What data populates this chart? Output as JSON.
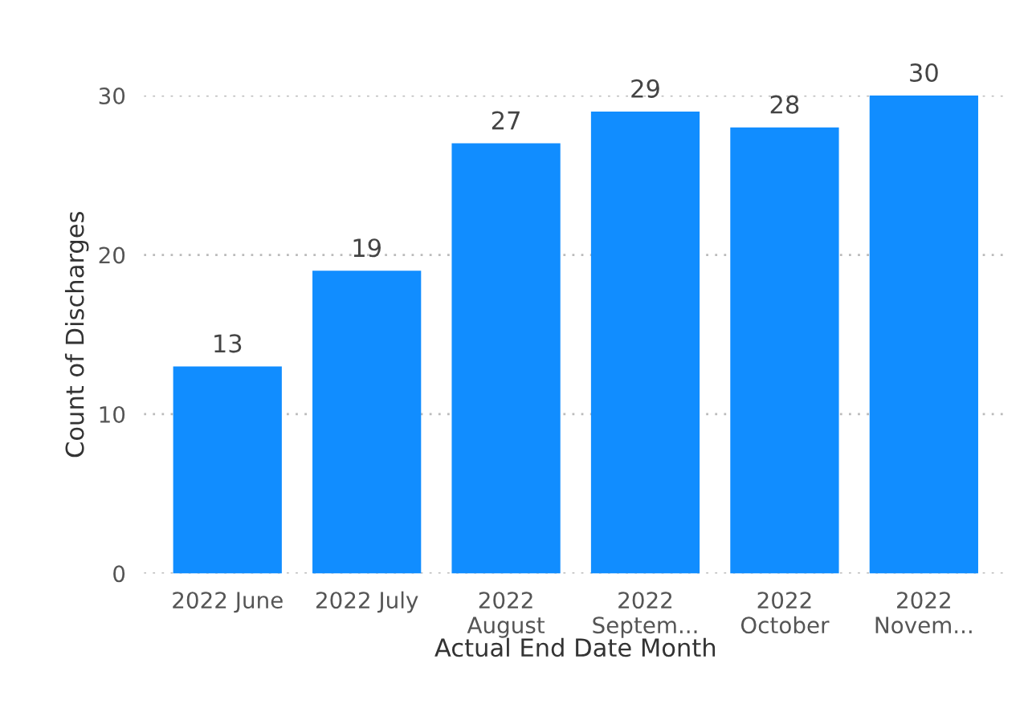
{
  "chart_data": {
    "type": "bar",
    "xlabel": "Actual End Date Month",
    "ylabel": "Count of Discharges",
    "categories": [
      "2022 June",
      "2022 July",
      "2022\nAugust",
      "2022\nSeptem...",
      "2022\nOctober",
      "2022\nNovem..."
    ],
    "values": [
      13,
      19,
      27,
      29,
      28,
      30
    ],
    "color": "#118dff",
    "ylim": [
      0,
      30
    ],
    "yticks": [
      0,
      10,
      20,
      30
    ],
    "grid": "y",
    "data_labels": true
  }
}
